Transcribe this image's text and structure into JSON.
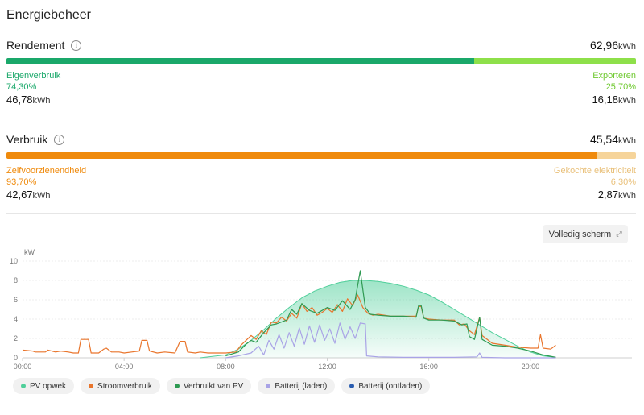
{
  "title": "Energiebeheer",
  "unit": "kWh",
  "rendement": {
    "label": "Rendement",
    "total": "62,96",
    "left": {
      "name": "Eigenverbruik",
      "pct": "74,30%",
      "value": "46,78",
      "color": "#1aa86a",
      "fraction": 0.743
    },
    "right": {
      "name": "Exporteren",
      "pct": "25,70%",
      "value": "16,18",
      "color": "#8ee04a",
      "fraction": 0.257
    }
  },
  "verbruik": {
    "label": "Verbruik",
    "total": "45,54",
    "left": {
      "name": "Zelfvoorzienendheid",
      "pct": "93,70%",
      "value": "42,67",
      "color": "#ef8a0c",
      "fraction": 0.937
    },
    "right": {
      "name": "Gekochte elektriciteit",
      "pct": "6,30%",
      "value": "2,87",
      "color": "#f6d49a",
      "fraction": 0.063
    }
  },
  "fullscreen_label": "Volledig scherm",
  "chart_data": {
    "type": "line",
    "ylabel": "kW",
    "yticks": [
      0,
      2,
      4,
      6,
      8,
      10
    ],
    "ylim": [
      0,
      10
    ],
    "xlim": [
      0,
      24
    ],
    "xticks": [
      "00:00",
      "04:00",
      "08:00",
      "12:00",
      "16:00",
      "20:00"
    ],
    "series": [
      {
        "name": "PV opwek",
        "color": "#4fcf9a",
        "fill": true,
        "points": [
          [
            7.0,
            0
          ],
          [
            8.0,
            0.3
          ],
          [
            8.5,
            0.9
          ],
          [
            9.0,
            1.8
          ],
          [
            9.5,
            2.9
          ],
          [
            10.0,
            4.1
          ],
          [
            10.5,
            5.2
          ],
          [
            11.0,
            6.2
          ],
          [
            11.5,
            6.9
          ],
          [
            12.0,
            7.4
          ],
          [
            12.5,
            7.8
          ],
          [
            13.0,
            8.0
          ],
          [
            13.5,
            8.0
          ],
          [
            14.0,
            7.9
          ],
          [
            14.5,
            7.7
          ],
          [
            15.0,
            7.4
          ],
          [
            15.5,
            7.0
          ],
          [
            16.0,
            6.5
          ],
          [
            16.5,
            5.8
          ],
          [
            17.0,
            5.0
          ],
          [
            17.5,
            4.2
          ],
          [
            18.0,
            3.4
          ],
          [
            18.5,
            2.6
          ],
          [
            19.0,
            1.9
          ],
          [
            19.5,
            1.2
          ],
          [
            20.0,
            0.6
          ],
          [
            20.5,
            0.2
          ],
          [
            21.0,
            0.05
          ]
        ]
      },
      {
        "name": "Stroomverbruik",
        "color": "#e9752c",
        "fill": false,
        "points": [
          [
            0.0,
            0.8
          ],
          [
            0.4,
            0.7
          ],
          [
            0.5,
            0.6
          ],
          [
            0.9,
            0.6
          ],
          [
            1.0,
            0.8
          ],
          [
            1.3,
            0.6
          ],
          [
            1.5,
            0.7
          ],
          [
            1.8,
            0.6
          ],
          [
            2.0,
            0.5
          ],
          [
            2.2,
            0.5
          ],
          [
            2.3,
            1.9
          ],
          [
            2.6,
            1.9
          ],
          [
            2.7,
            0.5
          ],
          [
            3.0,
            0.5
          ],
          [
            3.2,
            0.9
          ],
          [
            3.3,
            1.0
          ],
          [
            3.5,
            0.6
          ],
          [
            3.8,
            0.6
          ],
          [
            4.0,
            0.5
          ],
          [
            4.3,
            0.6
          ],
          [
            4.6,
            0.7
          ],
          [
            4.7,
            1.8
          ],
          [
            4.9,
            1.8
          ],
          [
            5.0,
            0.7
          ],
          [
            5.3,
            0.5
          ],
          [
            5.6,
            0.6
          ],
          [
            6.0,
            0.5
          ],
          [
            6.2,
            1.7
          ],
          [
            6.4,
            1.7
          ],
          [
            6.5,
            0.6
          ],
          [
            6.8,
            0.5
          ],
          [
            7.0,
            0.6
          ],
          [
            7.3,
            0.5
          ],
          [
            8.0,
            0.5
          ],
          [
            8.4,
            0.6
          ],
          [
            8.6,
            1.3
          ],
          [
            8.8,
            1.8
          ],
          [
            9.0,
            2.3
          ],
          [
            9.2,
            1.9
          ],
          [
            9.4,
            2.8
          ],
          [
            9.6,
            2.4
          ],
          [
            9.8,
            3.7
          ],
          [
            10.0,
            3.6
          ],
          [
            10.2,
            4.2
          ],
          [
            10.4,
            3.8
          ],
          [
            10.6,
            4.6
          ],
          [
            10.8,
            4.1
          ],
          [
            11.0,
            5.6
          ],
          [
            11.2,
            4.8
          ],
          [
            11.4,
            5.2
          ],
          [
            11.6,
            4.4
          ],
          [
            11.8,
            4.7
          ],
          [
            12.0,
            5.1
          ],
          [
            12.2,
            4.7
          ],
          [
            12.4,
            5.5
          ],
          [
            12.6,
            4.8
          ],
          [
            12.8,
            6.1
          ],
          [
            13.0,
            5.4
          ],
          [
            13.2,
            6.5
          ],
          [
            13.4,
            5.2
          ],
          [
            13.6,
            4.6
          ],
          [
            13.8,
            4.4
          ],
          [
            14.0,
            4.5
          ],
          [
            14.5,
            4.3
          ],
          [
            15.0,
            4.3
          ],
          [
            15.5,
            4.3
          ],
          [
            15.6,
            5.3
          ],
          [
            15.7,
            5.3
          ],
          [
            15.8,
            4.1
          ],
          [
            16.0,
            4.0
          ],
          [
            16.5,
            3.9
          ],
          [
            17.0,
            3.9
          ],
          [
            17.2,
            3.4
          ],
          [
            17.4,
            3.5
          ],
          [
            17.6,
            2.8
          ],
          [
            17.8,
            2.4
          ],
          [
            18.0,
            4.2
          ],
          [
            18.1,
            2.3
          ],
          [
            18.5,
            1.5
          ],
          [
            19.0,
            1.3
          ],
          [
            19.5,
            1.1
          ],
          [
            20.0,
            1.0
          ],
          [
            20.3,
            1.0
          ],
          [
            20.4,
            2.4
          ],
          [
            20.5,
            1.0
          ],
          [
            20.8,
            0.9
          ],
          [
            21.0,
            1.3
          ]
        ]
      },
      {
        "name": "Verbruikt van PV",
        "color": "#2e9a52",
        "fill": false,
        "points": [
          [
            8.0,
            0.2
          ],
          [
            8.5,
            0.6
          ],
          [
            8.8,
            1.4
          ],
          [
            9.0,
            1.8
          ],
          [
            9.2,
            1.6
          ],
          [
            9.5,
            2.6
          ],
          [
            9.8,
            3.4
          ],
          [
            10.0,
            3.5
          ],
          [
            10.4,
            3.9
          ],
          [
            10.6,
            5.0
          ],
          [
            10.8,
            4.5
          ],
          [
            11.0,
            5.6
          ],
          [
            11.3,
            4.9
          ],
          [
            11.6,
            4.6
          ],
          [
            12.0,
            5.2
          ],
          [
            12.3,
            4.9
          ],
          [
            12.6,
            5.9
          ],
          [
            12.9,
            5.0
          ],
          [
            13.1,
            6.0
          ],
          [
            13.3,
            9.0
          ],
          [
            13.5,
            5.2
          ],
          [
            13.7,
            4.5
          ],
          [
            14.0,
            4.4
          ],
          [
            14.5,
            4.3
          ],
          [
            15.0,
            4.3
          ],
          [
            15.5,
            4.2
          ],
          [
            15.6,
            5.4
          ],
          [
            15.7,
            5.4
          ],
          [
            15.8,
            4.1
          ],
          [
            16.0,
            3.9
          ],
          [
            16.5,
            3.9
          ],
          [
            17.0,
            3.8
          ],
          [
            17.3,
            3.4
          ],
          [
            17.5,
            3.5
          ],
          [
            17.6,
            2.2
          ],
          [
            17.8,
            1.9
          ],
          [
            18.0,
            4.2
          ],
          [
            18.1,
            1.9
          ],
          [
            18.5,
            1.3
          ],
          [
            19.0,
            1.2
          ],
          [
            19.5,
            1.0
          ],
          [
            20.0,
            0.7
          ],
          [
            20.5,
            0.3
          ],
          [
            21.0,
            0.05
          ]
        ]
      },
      {
        "name": "Batterij (laden)",
        "color": "#a9a3e6",
        "fill": false,
        "points": [
          [
            8.0,
            0
          ],
          [
            8.5,
            0.2
          ],
          [
            9.0,
            0.5
          ],
          [
            9.3,
            1.2
          ],
          [
            9.5,
            0.3
          ],
          [
            9.7,
            1.8
          ],
          [
            9.9,
            0.9
          ],
          [
            10.1,
            2.4
          ],
          [
            10.3,
            1.0
          ],
          [
            10.5,
            2.6
          ],
          [
            10.7,
            1.2
          ],
          [
            10.9,
            3.1
          ],
          [
            11.1,
            1.4
          ],
          [
            11.3,
            3.3
          ],
          [
            11.5,
            1.6
          ],
          [
            11.7,
            3.4
          ],
          [
            11.9,
            1.8
          ],
          [
            12.1,
            3.0
          ],
          [
            12.3,
            1.5
          ],
          [
            12.5,
            3.6
          ],
          [
            12.7,
            1.9
          ],
          [
            12.9,
            3.2
          ],
          [
            13.1,
            2.0
          ],
          [
            13.3,
            3.6
          ],
          [
            13.5,
            3.5
          ],
          [
            13.55,
            0.2
          ],
          [
            14.0,
            0.1
          ],
          [
            15.0,
            0.05
          ],
          [
            17.0,
            0.05
          ],
          [
            17.9,
            0.1
          ],
          [
            18.0,
            0.5
          ],
          [
            18.1,
            0.05
          ],
          [
            19.0,
            0
          ],
          [
            21.0,
            0
          ]
        ]
      },
      {
        "name": "Batterij (ontladen)",
        "color": "#2a5db0",
        "fill": false,
        "points": []
      }
    ]
  }
}
